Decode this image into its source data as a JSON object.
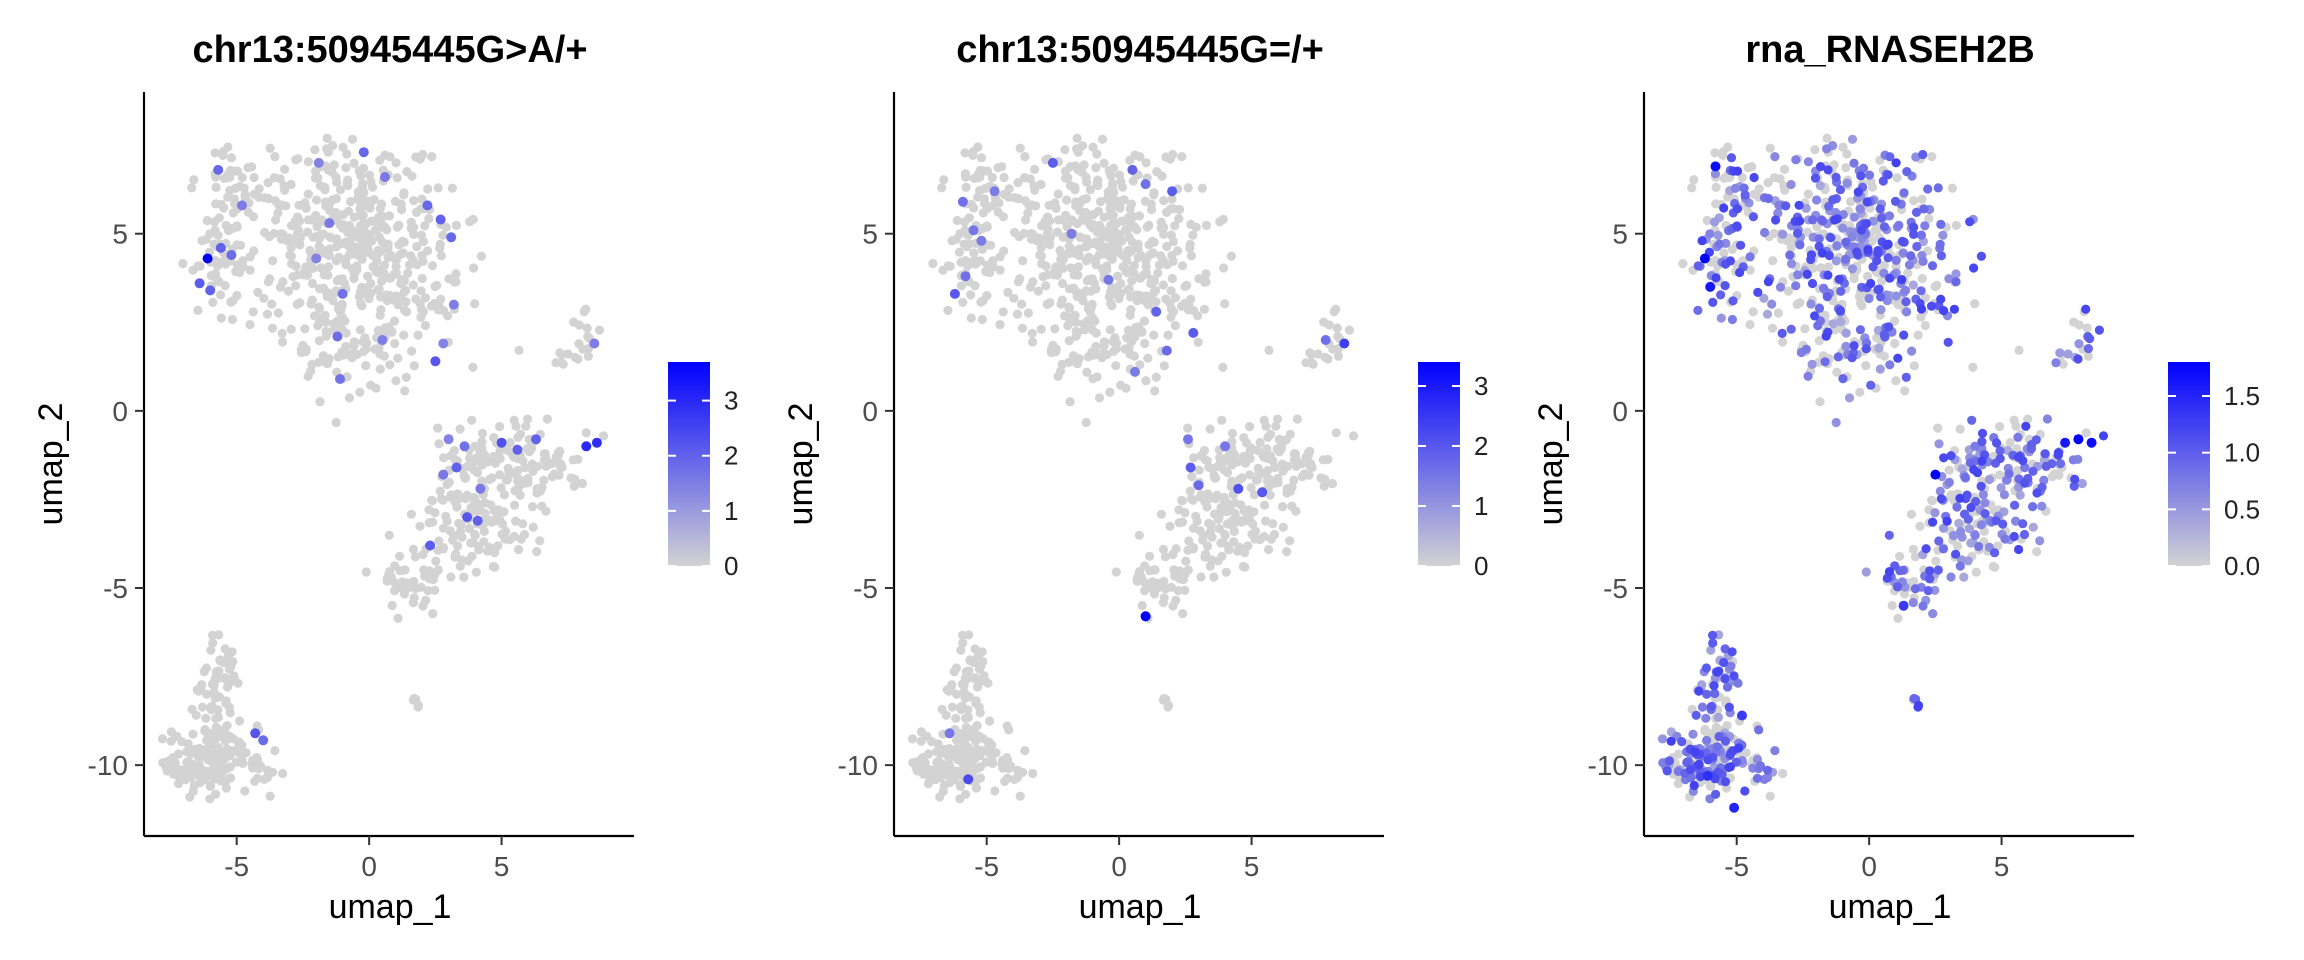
{
  "chart_data": [
    {
      "type": "scatter",
      "title": "chr13:50945445G>A/+",
      "xlabel": "umap_1",
      "ylabel": "umap_2",
      "xlim": [
        -8.5,
        10
      ],
      "ylim": [
        -12,
        9
      ],
      "xticks": [
        -5,
        0,
        5
      ],
      "yticks": [
        -10,
        -5,
        0,
        5
      ],
      "color_scale": {
        "low": "#d3d3d3",
        "high": "#0000ff",
        "min": 0,
        "max": 3.7,
        "ticks": [
          0,
          1,
          2,
          3
        ],
        "tick_labels": [
          "0",
          "1",
          "2",
          "3"
        ]
      },
      "background_value": 0,
      "highlighted_points": [
        [
          -6.1,
          4.3,
          3.7
        ],
        [
          -6.4,
          3.6,
          2.1
        ],
        [
          -6.0,
          3.4,
          2.0
        ],
        [
          -5.6,
          4.6,
          2.0
        ],
        [
          -5.2,
          4.4,
          1.8
        ],
        [
          -5.7,
          6.8,
          1.9
        ],
        [
          -4.8,
          5.8,
          1.5
        ],
        [
          -0.2,
          7.3,
          1.9
        ],
        [
          0.6,
          6.6,
          1.6
        ],
        [
          -1.9,
          7.0,
          1.4
        ],
        [
          -1.5,
          5.3,
          1.6
        ],
        [
          -2.0,
          4.3,
          1.4
        ],
        [
          2.2,
          5.8,
          1.9
        ],
        [
          2.7,
          5.4,
          2.0
        ],
        [
          3.1,
          4.9,
          1.9
        ],
        [
          -1.0,
          3.3,
          1.7
        ],
        [
          -1.2,
          2.1,
          1.8
        ],
        [
          -1.1,
          0.9,
          1.7
        ],
        [
          0.5,
          2.0,
          1.5
        ],
        [
          2.8,
          1.9,
          1.4
        ],
        [
          3.2,
          3.0,
          1.5
        ],
        [
          2.5,
          1.4,
          2.2
        ],
        [
          5.0,
          -0.9,
          2.3
        ],
        [
          5.6,
          -1.1,
          2.0
        ],
        [
          6.3,
          -0.8,
          2.0
        ],
        [
          8.2,
          -1.0,
          3.0
        ],
        [
          8.6,
          -0.9,
          2.9
        ],
        [
          3.3,
          -1.6,
          2.0
        ],
        [
          3.6,
          -1.0,
          1.7
        ],
        [
          2.8,
          -1.8,
          1.6
        ],
        [
          4.2,
          -2.2,
          1.6
        ],
        [
          3.7,
          -3.0,
          2.2
        ],
        [
          4.1,
          -3.1,
          2.0
        ],
        [
          2.3,
          -3.8,
          2.1
        ],
        [
          -4.3,
          -9.1,
          2.2
        ],
        [
          -4.0,
          -9.3,
          1.8
        ],
        [
          8.5,
          1.9,
          1.5
        ],
        [
          3.0,
          -0.8,
          1.4
        ]
      ]
    },
    {
      "type": "scatter",
      "title": "chr13:50945445G=/+",
      "xlabel": "umap_1",
      "ylabel": "umap_2",
      "xlim": [
        -8.5,
        10
      ],
      "ylim": [
        -12,
        9
      ],
      "xticks": [
        -5,
        0,
        5
      ],
      "yticks": [
        -10,
        -5,
        0,
        5
      ],
      "color_scale": {
        "low": "#d3d3d3",
        "high": "#0000ff",
        "min": 0,
        "max": 3.4,
        "ticks": [
          0,
          1,
          2,
          3
        ],
        "tick_labels": [
          "0",
          "1",
          "2",
          "3"
        ]
      },
      "background_value": 0,
      "highlighted_points": [
        [
          -6.2,
          3.3,
          2.0
        ],
        [
          -5.8,
          3.8,
          1.6
        ],
        [
          -5.5,
          5.1,
          1.5
        ],
        [
          -5.2,
          4.8,
          1.4
        ],
        [
          -5.9,
          5.9,
          1.6
        ],
        [
          -4.7,
          6.2,
          1.4
        ],
        [
          -2.5,
          7.0,
          1.9
        ],
        [
          0.5,
          6.8,
          1.8
        ],
        [
          1.0,
          6.4,
          1.6
        ],
        [
          2.0,
          6.2,
          1.9
        ],
        [
          -1.8,
          5.0,
          1.4
        ],
        [
          -0.4,
          3.7,
          1.5
        ],
        [
          1.4,
          2.8,
          1.8
        ],
        [
          2.8,
          2.2,
          1.9
        ],
        [
          1.8,
          1.7,
          1.7
        ],
        [
          0.6,
          1.1,
          1.4
        ],
        [
          8.5,
          1.9,
          2.4
        ],
        [
          7.8,
          2.0,
          1.6
        ],
        [
          2.7,
          -1.6,
          1.9
        ],
        [
          3.0,
          -2.1,
          1.7
        ],
        [
          4.5,
          -2.2,
          2.1
        ],
        [
          5.4,
          -2.3,
          2.0
        ],
        [
          2.6,
          -0.8,
          1.5
        ],
        [
          1.0,
          -5.8,
          3.4
        ],
        [
          -5.7,
          -10.4,
          2.2
        ],
        [
          -6.4,
          -9.1,
          1.5
        ],
        [
          4.0,
          -1.0,
          1.5
        ]
      ]
    },
    {
      "type": "scatter",
      "title": "rna_RNASEH2B",
      "xlabel": "umap_1",
      "ylabel": "umap_2",
      "xlim": [
        -8.5,
        10
      ],
      "ylim": [
        -12,
        9
      ],
      "xticks": [
        -5,
        0,
        5
      ],
      "yticks": [
        -10,
        -5,
        0,
        5
      ],
      "color_scale": {
        "low": "#d3d3d3",
        "high": "#0000ff",
        "min": 0,
        "max": 1.8,
        "ticks": [
          0,
          0.5,
          1,
          1.5
        ],
        "tick_labels": [
          "0.0",
          "0.5",
          "1.0",
          "1.5"
        ]
      },
      "background_value": 0,
      "dense_expression": true,
      "highlighted_points": [
        [
          -6.2,
          4.3,
          1.8
        ],
        [
          -6.0,
          3.5,
          1.6
        ],
        [
          -5.8,
          6.9,
          1.7
        ],
        [
          2.5,
          -1.8,
          1.8
        ],
        [
          7.9,
          -0.8,
          1.8
        ],
        [
          8.4,
          -0.9,
          1.7
        ],
        [
          7.4,
          -0.9,
          1.6
        ],
        [
          -5.1,
          -11.2,
          1.5
        ],
        [
          -6.1,
          -10.3,
          1.4
        ],
        [
          -4.8,
          -8.6,
          1.3
        ],
        [
          1.3,
          -5.5,
          1.3
        ]
      ]
    }
  ]
}
